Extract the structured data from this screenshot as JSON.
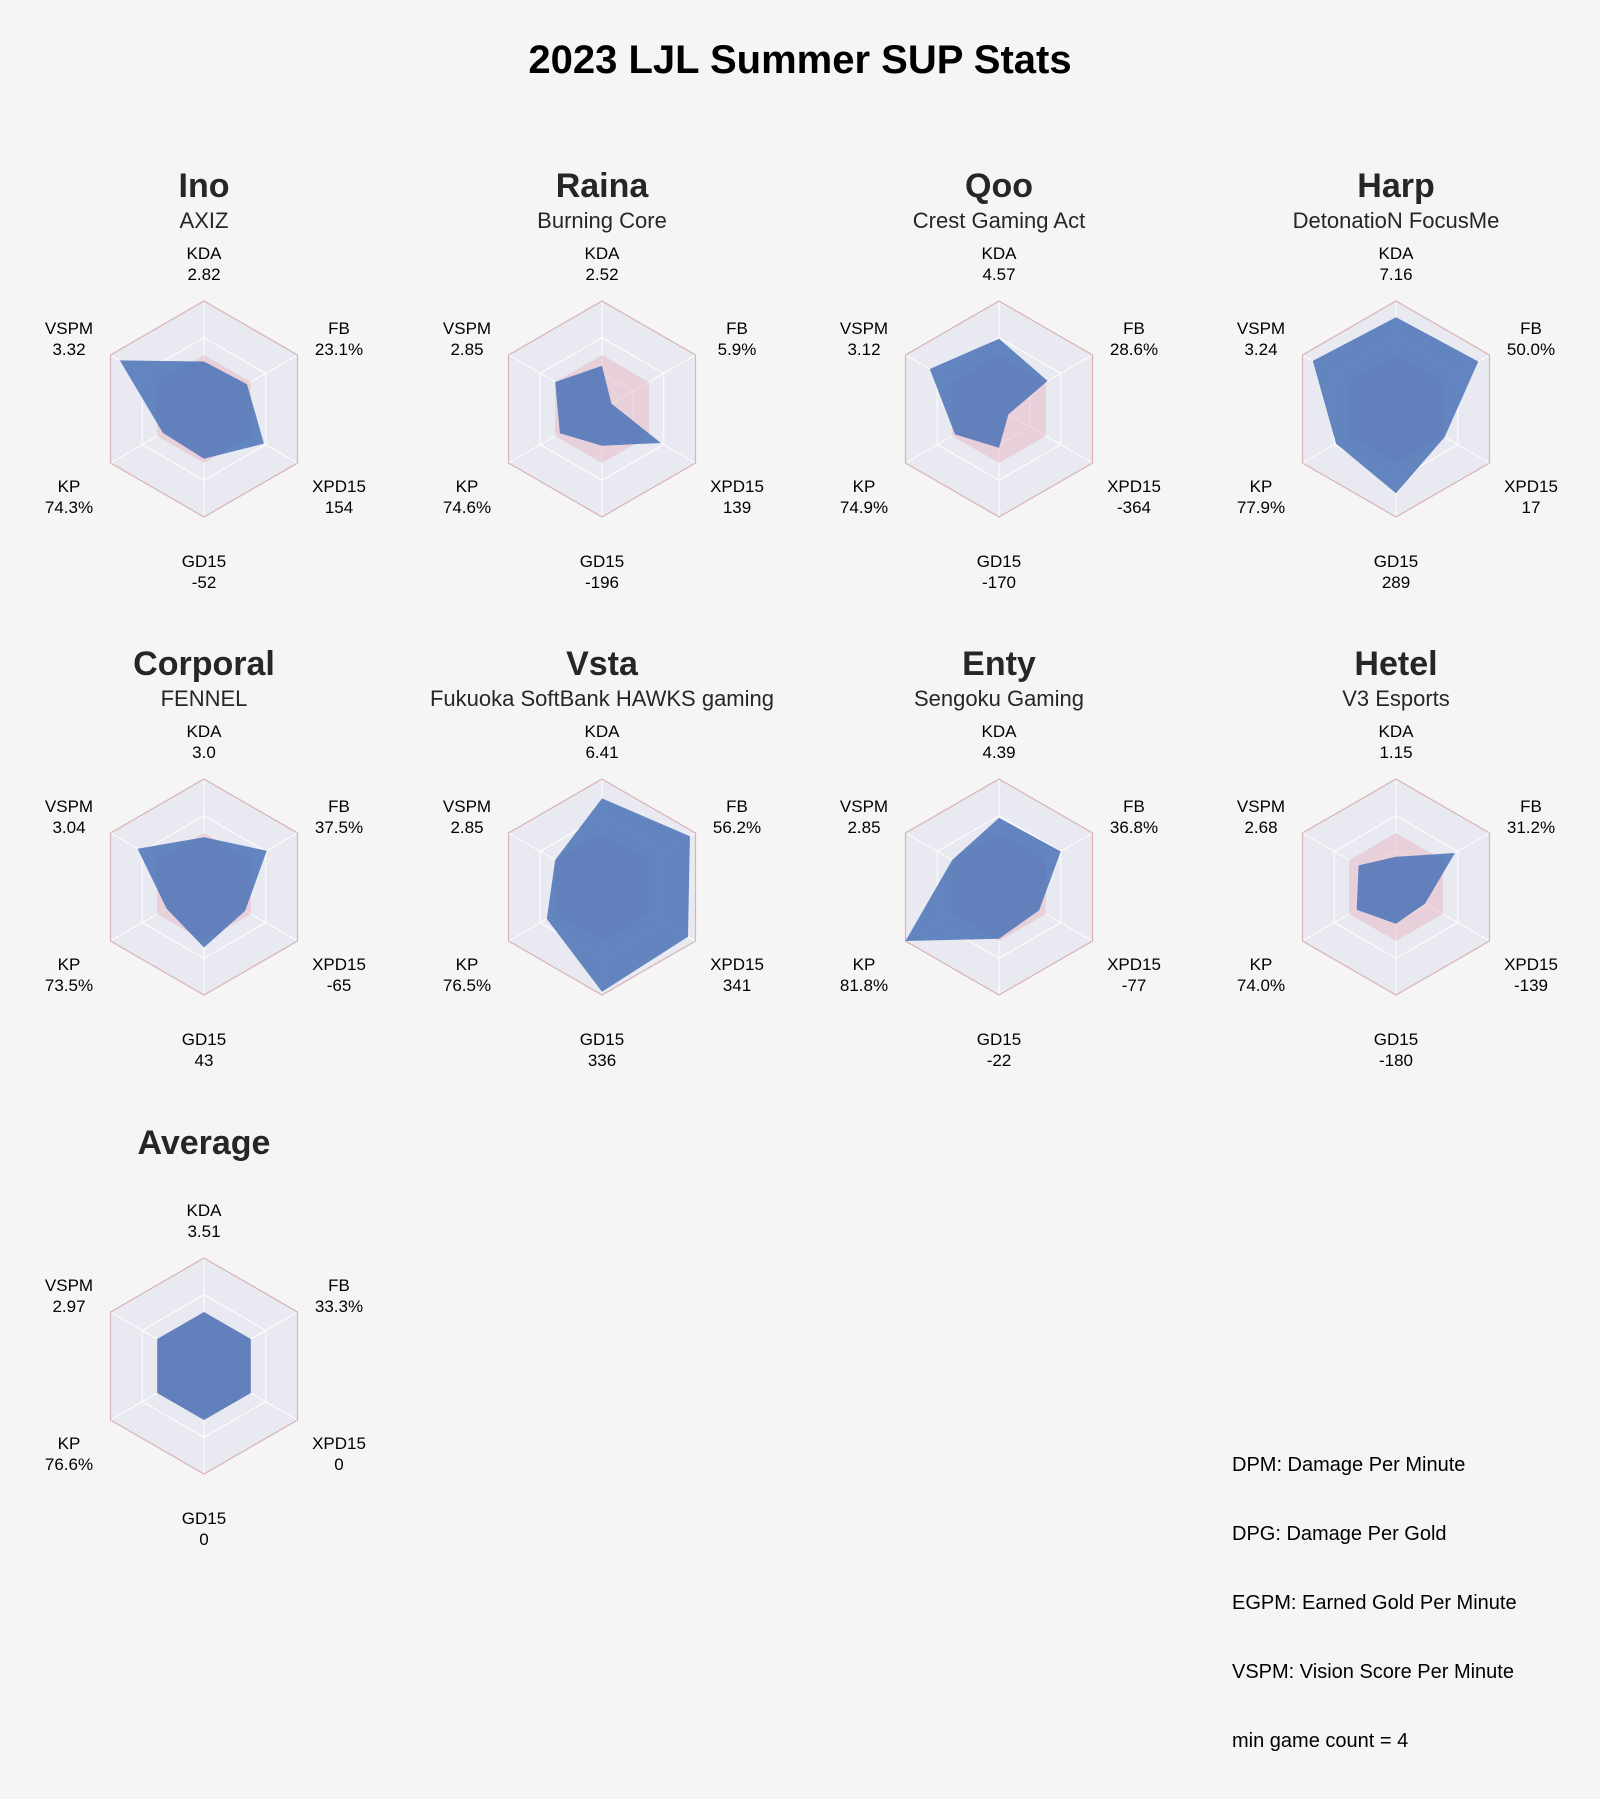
{
  "title": "2023 LJL Summer SUP Stats",
  "colors": {
    "background": "#f5f5f5",
    "plot_bg": "#e9e9f1",
    "grid": "#ffffff",
    "outer_frame": "#d9b3b6",
    "player_fill": "#4a72b6",
    "average_fill": "#e8bcc6"
  },
  "notes": [
    "DPM: Damage Per Minute",
    "DPG: Damage Per Gold",
    "EGPM: Earned Gold Per Minute",
    "VSPM: Vision Score Per Minute",
    "min game count = 4"
  ],
  "chart_data": [
    {
      "type": "radar",
      "title": "Ino",
      "subtitle": "AXIZ",
      "axes": [
        "KDA",
        "FB",
        "XPD15",
        "GD15",
        "KP",
        "VSPM"
      ],
      "labels": [
        "2.82",
        "23.1%",
        "154",
        "-52",
        "74.3%",
        "3.32"
      ],
      "values": [
        2.82,
        23.1,
        154,
        -52,
        74.3,
        3.32
      ]
    },
    {
      "type": "radar",
      "title": "Raina",
      "subtitle": "Burning Core",
      "axes": [
        "KDA",
        "FB",
        "XPD15",
        "GD15",
        "KP",
        "VSPM"
      ],
      "labels": [
        "2.52",
        "5.9%",
        "139",
        "-196",
        "74.6%",
        "2.85"
      ],
      "values": [
        2.52,
        5.9,
        139,
        -196,
        74.6,
        2.85
      ]
    },
    {
      "type": "radar",
      "title": "Qoo",
      "subtitle": "Crest Gaming Act",
      "axes": [
        "KDA",
        "FB",
        "XPD15",
        "GD15",
        "KP",
        "VSPM"
      ],
      "labels": [
        "4.57",
        "28.6%",
        "-364",
        "-170",
        "74.9%",
        "3.12"
      ],
      "values": [
        4.57,
        28.6,
        -364,
        -170,
        74.9,
        3.12
      ]
    },
    {
      "type": "radar",
      "title": "Harp",
      "subtitle": "DetonatioN FocusMe",
      "axes": [
        "KDA",
        "FB",
        "XPD15",
        "GD15",
        "KP",
        "VSPM"
      ],
      "labels": [
        "7.16",
        "50.0%",
        "17",
        "289",
        "77.9%",
        "3.24"
      ],
      "values": [
        7.16,
        50.0,
        17,
        289,
        77.9,
        3.24
      ]
    },
    {
      "type": "radar",
      "title": "Corporal",
      "subtitle": "FENNEL",
      "axes": [
        "KDA",
        "FB",
        "XPD15",
        "GD15",
        "KP",
        "VSPM"
      ],
      "labels": [
        "3.0",
        "37.5%",
        "-65",
        "43",
        "73.5%",
        "3.04"
      ],
      "values": [
        3.0,
        37.5,
        -65,
        43,
        73.5,
        3.04
      ]
    },
    {
      "type": "radar",
      "title": "Vsta",
      "subtitle": "Fukuoka SoftBank HAWKS gaming",
      "axes": [
        "KDA",
        "FB",
        "XPD15",
        "GD15",
        "KP",
        "VSPM"
      ],
      "labels": [
        "6.41",
        "56.2%",
        "341",
        "336",
        "76.5%",
        "2.85"
      ],
      "values": [
        6.41,
        56.2,
        341,
        336,
        76.5,
        2.85
      ]
    },
    {
      "type": "radar",
      "title": "Enty",
      "subtitle": "Sengoku Gaming",
      "axes": [
        "KDA",
        "FB",
        "XPD15",
        "GD15",
        "KP",
        "VSPM"
      ],
      "labels": [
        "4.39",
        "36.8%",
        "-77",
        "-22",
        "81.8%",
        "2.85"
      ],
      "values": [
        4.39,
        36.8,
        -77,
        -22,
        81.8,
        2.85
      ]
    },
    {
      "type": "radar",
      "title": "Hetel",
      "subtitle": "V3 Esports",
      "axes": [
        "KDA",
        "FB",
        "XPD15",
        "GD15",
        "KP",
        "VSPM"
      ],
      "labels": [
        "1.15",
        "31.2%",
        "-139",
        "-180",
        "74.0%",
        "2.68"
      ],
      "values": [
        1.15,
        31.2,
        -139,
        -180,
        74.0,
        2.68
      ]
    },
    {
      "type": "radar",
      "title": "Average",
      "subtitle": "",
      "axes": [
        "KDA",
        "FB",
        "XPD15",
        "GD15",
        "KP",
        "VSPM"
      ],
      "labels": [
        "3.51",
        "33.3%",
        "0",
        "0",
        "76.6%",
        "2.97"
      ],
      "values": [
        3.51,
        33.3,
        0,
        0,
        76.6,
        2.97
      ]
    }
  ],
  "normalized_scores": [
    [
      0.44,
      0.46,
      0.64,
      0.46,
      0.44,
      0.9
    ],
    [
      0.4,
      0.1,
      0.63,
      0.34,
      0.45,
      0.5
    ],
    [
      0.65,
      0.52,
      0.1,
      0.36,
      0.47,
      0.74
    ],
    [
      0.85,
      0.88,
      0.52,
      0.78,
      0.64,
      0.89
    ],
    [
      0.46,
      0.67,
      0.44,
      0.56,
      0.4,
      0.71
    ],
    [
      0.82,
      0.94,
      0.92,
      0.97,
      0.59,
      0.5
    ],
    [
      0.64,
      0.66,
      0.43,
      0.48,
      1.0,
      0.5
    ],
    [
      0.28,
      0.63,
      0.31,
      0.34,
      0.42,
      0.4
    ],
    [
      0.5,
      0.5,
      0.5,
      0.5,
      0.5,
      0.5
    ]
  ]
}
